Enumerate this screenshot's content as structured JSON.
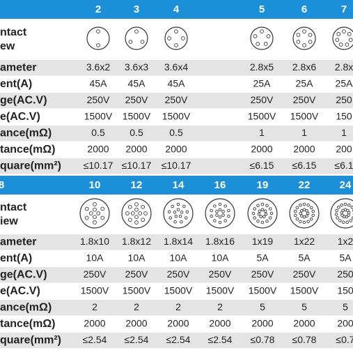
{
  "tables": [
    {
      "columns": [
        "2",
        "3",
        "4",
        "5",
        "6",
        "7"
      ],
      "contact_label": [
        "ntact",
        "ew"
      ],
      "rows": [
        {
          "label": "ameter",
          "cells": [
            "3.6x2",
            "3.6x3",
            "3.6x4",
            "2.8x5",
            "2.8x6",
            "2.8x"
          ]
        },
        {
          "label": "ent(A)",
          "cells": [
            "45A",
            "45A",
            "45A",
            "25A",
            "25A",
            "25A"
          ]
        },
        {
          "label": "ge(AC.V)",
          "cells": [
            "250V",
            "250V",
            "250V",
            "250V",
            "250V",
            "250"
          ]
        },
        {
          "label": "e(AC.V)",
          "cells": [
            "1500V",
            "1500V",
            "1500V",
            "1500V",
            "1500V",
            "150"
          ]
        },
        {
          "label": "ance(mΩ)",
          "cells": [
            "0.5",
            "0.5",
            "0.5",
            "1",
            "1",
            "1"
          ]
        },
        {
          "label": "tance(mΩ)",
          "cells": [
            "2000",
            "2000",
            "2000",
            "2000",
            "2000",
            "200"
          ]
        },
        {
          "label": "quare(mm²)",
          "cells": [
            "≤10.17",
            "≤10.17",
            "≤10.17",
            "≤6.15",
            "≤6.15",
            "≤6.1"
          ]
        }
      ]
    },
    {
      "corner": "8",
      "columns": [
        "10",
        "12",
        "14",
        "16",
        "19",
        "22",
        "24"
      ],
      "contact_label": [
        "ntact",
        "iew"
      ],
      "rows": [
        {
          "label": "ameter",
          "cells": [
            "1.8x10",
            "1.8x12",
            "1.8x14",
            "1.8x16",
            "1x19",
            "1x22",
            "1x2"
          ]
        },
        {
          "label": "ent(A)",
          "cells": [
            "10A",
            "10A",
            "10A",
            "10A",
            "5A",
            "5A",
            "5A"
          ]
        },
        {
          "label": "ge(AC.V)",
          "cells": [
            "250V",
            "250V",
            "250V",
            "250V",
            "250V",
            "250V",
            "250"
          ]
        },
        {
          "label": "e(AC.V)",
          "cells": [
            "1500V",
            "1500V",
            "1500V",
            "1500V",
            "1500V",
            "1500V",
            "150"
          ]
        },
        {
          "label": "ance(mΩ)",
          "cells": [
            "2",
            "2",
            "2",
            "2",
            "5",
            "5",
            "5"
          ]
        },
        {
          "label": "tance(mΩ)",
          "cells": [
            "2000",
            "2000",
            "2000",
            "2000",
            "2000",
            "2000",
            "200"
          ]
        },
        {
          "label": "quare(mm²)",
          "cells": [
            "≤2.54",
            "≤2.54",
            "≤2.54",
            "≤2.54",
            "≤0.78",
            "≤0.78",
            "≤0.7"
          ]
        }
      ]
    }
  ]
}
